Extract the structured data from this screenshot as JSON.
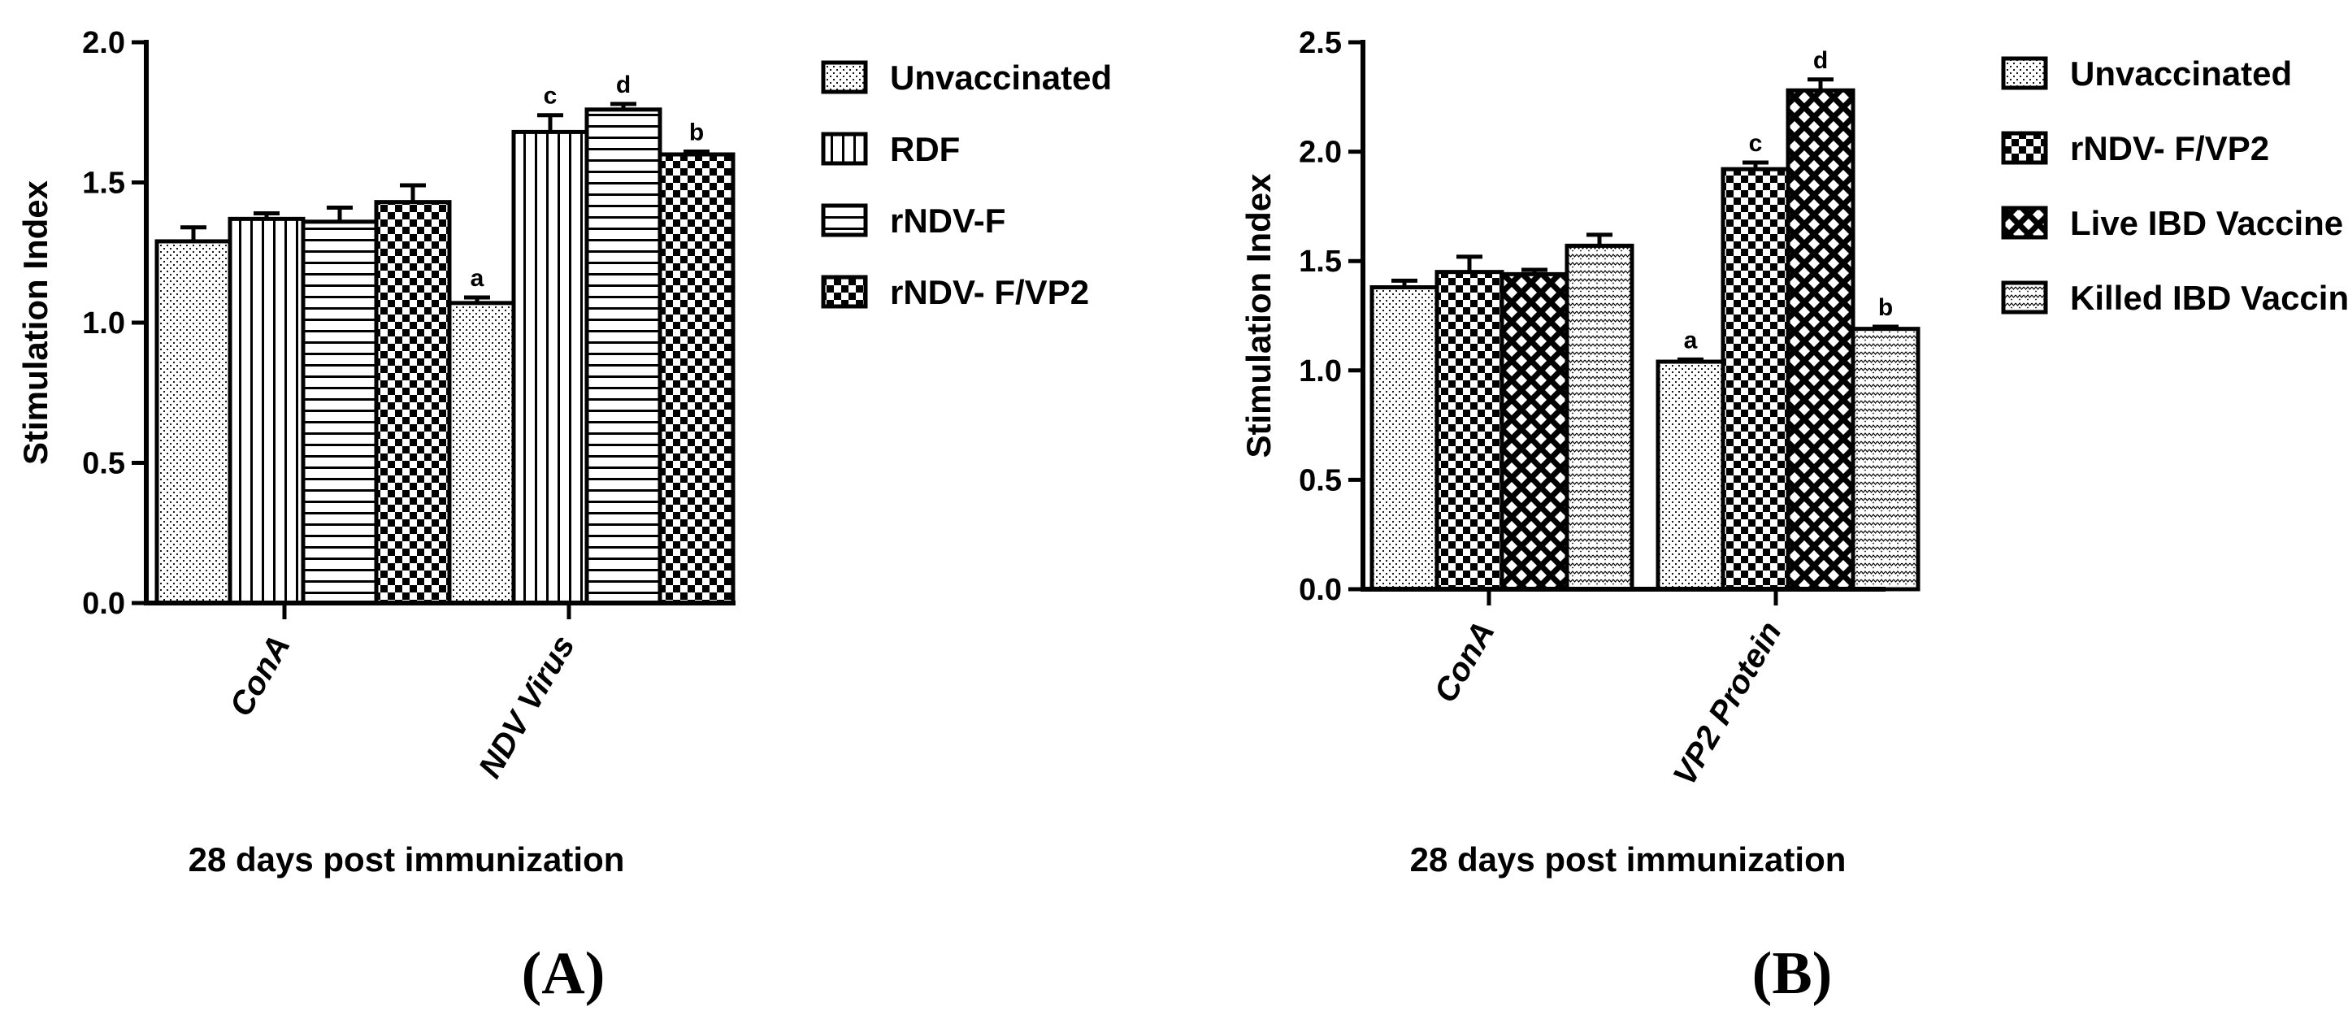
{
  "chart_data": [
    {
      "type": "bar",
      "panel_label": "(A)",
      "xlabel": "28 days post immunization",
      "ylabel": "Stimulation Index",
      "ylim": [
        0,
        2.0
      ],
      "yticks": [
        "0.0",
        "0.5",
        "1.0",
        "1.5",
        "2.0"
      ],
      "grid": false,
      "legend_position": "right",
      "categories": [
        "ConA",
        "NDV Virus"
      ],
      "series": [
        {
          "name": "Unvaccinated",
          "pattern": "dots",
          "values": [
            1.29,
            1.07
          ],
          "errors": [
            0.05,
            0.02
          ],
          "labels": [
            "",
            "a"
          ]
        },
        {
          "name": "RDF",
          "pattern": "vlines",
          "values": [
            1.37,
            1.68
          ],
          "errors": [
            0.02,
            0.06
          ],
          "labels": [
            "",
            "c"
          ]
        },
        {
          "name": "rNDV-F",
          "pattern": "hlines",
          "values": [
            1.36,
            1.76
          ],
          "errors": [
            0.05,
            0.02
          ],
          "labels": [
            "",
            "d"
          ]
        },
        {
          "name": "rNDV- F/VP2",
          "pattern": "checker",
          "values": [
            1.43,
            1.6
          ],
          "errors": [
            0.06,
            0.01
          ],
          "labels": [
            "",
            "b"
          ]
        }
      ]
    },
    {
      "type": "bar",
      "panel_label": "(B)",
      "xlabel": "28 days post immunization",
      "ylabel": "Stimulation Index",
      "ylim": [
        0,
        2.5
      ],
      "yticks": [
        "0.0",
        "0.5",
        "1.0",
        "1.5",
        "2.0",
        "2.5"
      ],
      "grid": false,
      "legend_position": "right",
      "categories": [
        "ConA",
        "VP2 Protein"
      ],
      "series": [
        {
          "name": "Unvaccinated",
          "pattern": "dots",
          "values": [
            1.38,
            1.04
          ],
          "errors": [
            0.03,
            0.01
          ],
          "labels": [
            "",
            "a"
          ]
        },
        {
          "name": "rNDV- F/VP2",
          "pattern": "checker",
          "values": [
            1.45,
            1.92
          ],
          "errors": [
            0.07,
            0.03
          ],
          "labels": [
            "",
            "c"
          ]
        },
        {
          "name": "Live IBD Vaccine",
          "pattern": "crosshatch",
          "values": [
            1.44,
            2.28
          ],
          "errors": [
            0.02,
            0.05
          ],
          "labels": [
            "",
            "d"
          ]
        },
        {
          "name": "Killed IBD Vaccine",
          "pattern": "zigzag",
          "values": [
            1.57,
            1.19
          ],
          "errors": [
            0.05,
            0.01
          ],
          "labels": [
            "",
            "b"
          ]
        }
      ]
    }
  ]
}
